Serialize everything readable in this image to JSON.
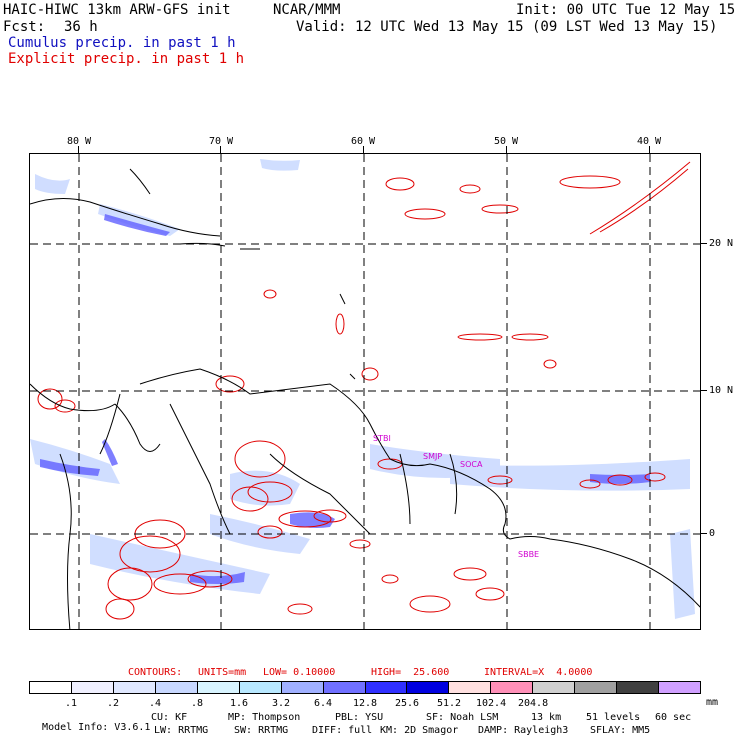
{
  "header": {
    "model_title": "HAIC-HIWC 13km ARW-GFS init",
    "center": "NCAR/MMM",
    "init": "Init: 00 UTC Tue 12 May 15",
    "fcst_label": "Fcst:",
    "fcst_value": "36 h",
    "valid": "Valid: 12 UTC Wed 13 May 15 (09 LST Wed 13 May 15)",
    "legend_cumulus": "Cumulus precip. in past 1 h",
    "legend_explicit": "Explicit precip. in past 1 h"
  },
  "map": {
    "lon_labels": [
      "80 W",
      "70 W",
      "60 W",
      "50 W",
      "40 W"
    ],
    "lat_labels": [
      "20 N",
      "10 N",
      "0"
    ],
    "stations": [
      "STBI",
      "SMJP",
      "SOCA",
      "SBBE"
    ]
  },
  "contours": {
    "label": "CONTOURS:",
    "units": "UNITS=mm",
    "low": "LOW= 0.10000",
    "high": "HIGH=  25.600",
    "interval": "INTERVAL=X  4.0000"
  },
  "colorbar": {
    "colors": [
      "#ffffff",
      "#f0f0ff",
      "#e0e8ff",
      "#c8d8ff",
      "#d8f4ff",
      "#b8e8ff",
      "#a0b0ff",
      "#7070ff",
      "#3030ff",
      "#0000e0",
      "#ffe0e0",
      "#ff90b8",
      "#d0d0d0",
      "#a0a0a0",
      "#404040",
      "#d0a0ff"
    ],
    "labels": [
      ".1",
      ".2",
      ".4",
      ".8",
      "1.6",
      "3.2",
      "6.4",
      "12.8",
      "25.6",
      "51.2",
      "102.4",
      "204.8"
    ],
    "unit": "mm"
  },
  "model_info": {
    "line1": [
      "Model Info: V3.6.1",
      "CU: KF",
      "MP: Thompson",
      "PBL: YSU",
      "SF: Noah LSM",
      "13 km",
      "51 levels",
      "60 sec"
    ],
    "line2": [
      "LW: RRTMG",
      "SW: RRTMG",
      "DIFF: full",
      "KM: 2D Smagor",
      "DAMP: Rayleigh3",
      "SFLAY: MM5"
    ]
  }
}
